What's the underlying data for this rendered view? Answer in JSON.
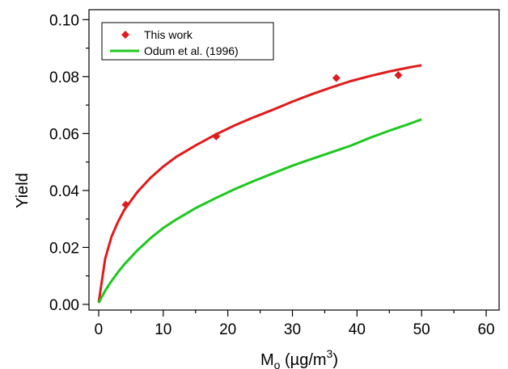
{
  "chart_data": {
    "type": "scatter",
    "title": "",
    "xlabel": {
      "main": "M",
      "subscript": "o",
      "unit_open": " (µg/m",
      "superscript": "3",
      "unit_close": ")"
    },
    "ylabel": "Yield",
    "xlim": [
      -1.5,
      62
    ],
    "ylim": [
      -0.002,
      0.1035
    ],
    "x_ticks": [
      0,
      10,
      20,
      30,
      40,
      50,
      60
    ],
    "y_ticks": [
      0.0,
      0.02,
      0.04,
      0.06,
      0.08,
      0.1
    ],
    "x_tick_labels": [
      "0",
      "10",
      "20",
      "30",
      "40",
      "50",
      "60"
    ],
    "y_tick_labels": [
      "0.00",
      "0.02",
      "0.04",
      "0.06",
      "0.08",
      "0.10"
    ],
    "legend_position": "top-left",
    "series": [
      {
        "name": "This work",
        "kind": "points",
        "marker": "diamond",
        "color": "#e01b1b",
        "points": [
          [
            4.2,
            0.035
          ],
          [
            18.2,
            0.059
          ],
          [
            36.8,
            0.0795
          ],
          [
            46.4,
            0.0805
          ]
        ]
      },
      {
        "kind": "line",
        "color": "#e01b1b",
        "points": [
          [
            0,
            0.0006
          ],
          [
            1,
            0.016
          ],
          [
            2,
            0.0238
          ],
          [
            3,
            0.029
          ],
          [
            4,
            0.0333
          ],
          [
            6,
            0.0395
          ],
          [
            8,
            0.0444
          ],
          [
            10,
            0.0484
          ],
          [
            12,
            0.0518
          ],
          [
            15,
            0.0558
          ],
          [
            18,
            0.0595
          ],
          [
            21,
            0.0628
          ],
          [
            24,
            0.0657
          ],
          [
            27,
            0.0684
          ],
          [
            30,
            0.0712
          ],
          [
            33,
            0.0738
          ],
          [
            36,
            0.0762
          ],
          [
            39,
            0.0784
          ],
          [
            42,
            0.0802
          ],
          [
            45,
            0.0818
          ],
          [
            48,
            0.0832
          ],
          [
            50,
            0.084
          ]
        ]
      },
      {
        "name": "Odum et al. (1996)",
        "kind": "line",
        "color": "#1ec81e",
        "points": [
          [
            0,
            0.0005
          ],
          [
            1,
            0.0048
          ],
          [
            2,
            0.0082
          ],
          [
            3,
            0.0113
          ],
          [
            4,
            0.0141
          ],
          [
            6,
            0.019
          ],
          [
            8,
            0.0232
          ],
          [
            10,
            0.0268
          ],
          [
            12,
            0.0298
          ],
          [
            15,
            0.0338
          ],
          [
            18,
            0.0372
          ],
          [
            21,
            0.0404
          ],
          [
            24,
            0.0433
          ],
          [
            27,
            0.046
          ],
          [
            30,
            0.0487
          ],
          [
            33,
            0.0511
          ],
          [
            36,
            0.0534
          ],
          [
            39,
            0.0557
          ],
          [
            42,
            0.0585
          ],
          [
            45,
            0.061
          ],
          [
            48,
            0.0633
          ],
          [
            50,
            0.065
          ]
        ]
      }
    ]
  }
}
